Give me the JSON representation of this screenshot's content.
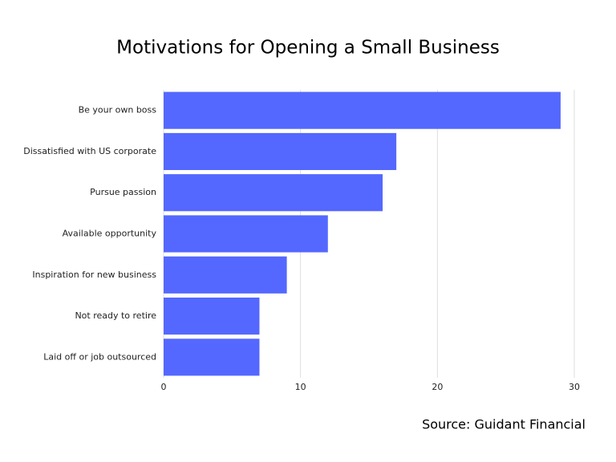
{
  "chart_data": {
    "type": "bar",
    "orientation": "horizontal",
    "title": "Motivations for Opening a Small Business",
    "categories": [
      "Be your own boss",
      "Dissatisfied with US corporate",
      "Pursue passion",
      "Available opportunity",
      "Inspiration for new business",
      "Not ready to retire",
      "Laid off or job outsourced"
    ],
    "values": [
      29,
      17,
      16,
      12,
      9,
      7,
      7
    ],
    "color": "#5468ff",
    "xlim": [
      0,
      30
    ],
    "xticks": [
      0,
      10,
      20,
      30
    ],
    "grid": true,
    "source": "Source: Guidant Financial"
  }
}
